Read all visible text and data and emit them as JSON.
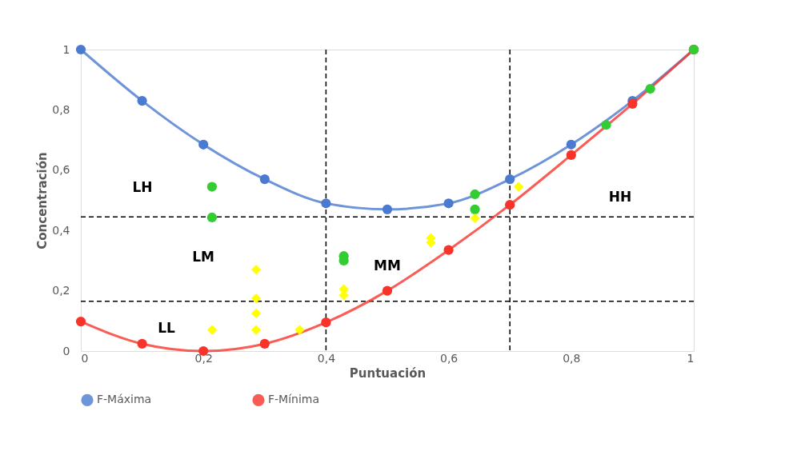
{
  "chart_data": {
    "type": "line",
    "xlabel": "Puntuación",
    "ylabel": "Concentración",
    "x": [
      0,
      0.1,
      0.2,
      0.3,
      0.4,
      0.5,
      0.6,
      0.7,
      0.8,
      0.9,
      1
    ],
    "series": [
      {
        "name": "F-Máxima",
        "color": "#4a7bd0",
        "values": [
          1,
          0.83,
          0.685,
          0.57,
          0.49,
          0.47,
          0.49,
          0.57,
          0.685,
          0.83,
          1
        ]
      },
      {
        "name": "F-Mínima",
        "color": "#f8342a",
        "values": [
          0.098,
          0.024,
          0,
          0.024,
          0.095,
          0.2,
          0.335,
          0.485,
          0.65,
          0.82,
          1
        ]
      },
      {
        "type": "scatter",
        "color": "#33cc33",
        "marker": "circle",
        "x": [
          0.214,
          0.214,
          0.429,
          0.429,
          0.643,
          0.643,
          0.857,
          0.929,
          1
        ],
        "values": [
          0.545,
          0.443,
          0.315,
          0.3,
          0.52,
          0.47,
          0.75,
          0.87,
          1
        ]
      },
      {
        "type": "scatter",
        "color": "#ffff00",
        "marker": "diamond",
        "x": [
          0.214,
          0.286,
          0.286,
          0.286,
          0.286,
          0.357,
          0.429,
          0.429,
          0.571,
          0.571,
          0.643,
          0.714
        ],
        "values": [
          0.07,
          0.27,
          0.175,
          0.125,
          0.07,
          0.07,
          0.205,
          0.185,
          0.375,
          0.36,
          0.44,
          0.545
        ]
      }
    ],
    "xlim": [
      0,
      1
    ],
    "ylim": [
      0,
      1
    ],
    "xticks": [
      0,
      {
        "value": 0.2,
        "label": "0,2"
      },
      {
        "value": 0.4,
        "label": "0,4"
      },
      {
        "value": 0.6,
        "label": "0,6"
      },
      {
        "value": 0.8,
        "label": "0,8"
      },
      1
    ],
    "yticks": [
      0,
      {
        "value": 0.2,
        "label": "0,2"
      },
      {
        "value": 0.4,
        "label": "0,4"
      },
      {
        "value": 0.6,
        "label": "0,6"
      },
      {
        "value": 0.8,
        "label": "0,8"
      },
      1
    ],
    "ref_lines": [
      {
        "axis": "x",
        "value": 0.4,
        "color": "#000000",
        "line_style": "dashed"
      },
      {
        "axis": "x",
        "value": 0.7,
        "color": "#000000",
        "line_style": "dashed"
      },
      {
        "axis": "y",
        "value": 0.445,
        "color": "#000000",
        "line_style": "dashed"
      },
      {
        "axis": "y",
        "value": 0.165,
        "color": "#000000",
        "line_style": "dashed"
      }
    ],
    "annotations": [
      "LH",
      "LM",
      "LL",
      "MM",
      "HH"
    ],
    "marker": "circle",
    "line_style": "solid",
    "grid": false,
    "legend": "bottom"
  }
}
